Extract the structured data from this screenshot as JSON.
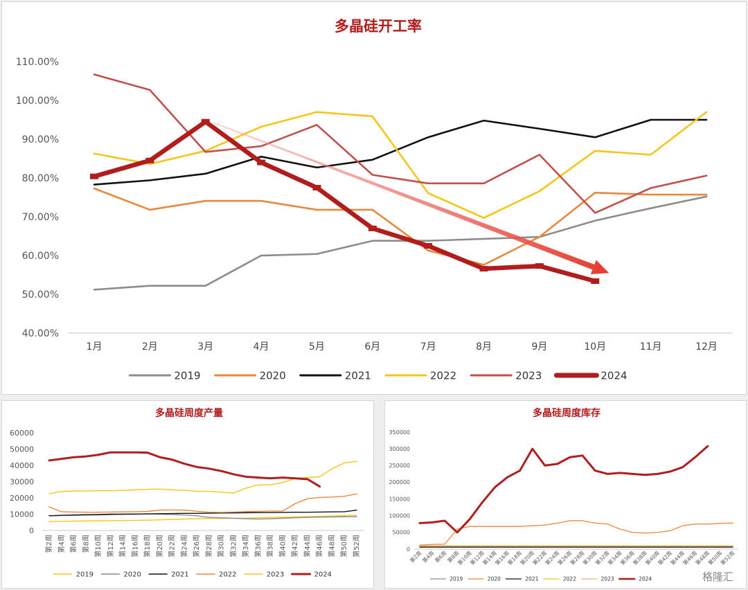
{
  "chart_data": [
    {
      "type": "line",
      "title": "多晶硅开工率",
      "categories": [
        "1月",
        "2月",
        "3月",
        "4月",
        "5月",
        "6月",
        "7月",
        "8月",
        "9月",
        "10月",
        "11月",
        "12月"
      ],
      "ylim": [
        40,
        110
      ],
      "yticks": [
        "40.00%",
        "50.00%",
        "60.00%",
        "70.00%",
        "80.00%",
        "90.00%",
        "100.00%",
        "110.00%"
      ],
      "grid": false,
      "legend": "bottom",
      "series": [
        {
          "name": "2019",
          "color": "#8c8c8c",
          "values": [
            51.2,
            52.2,
            52.2,
            60.0,
            60.4,
            63.8,
            63.8,
            64.3,
            64.8,
            69.0,
            72.2,
            75.2
          ]
        },
        {
          "name": "2020",
          "color": "#e8883a",
          "values": [
            77.3,
            71.8,
            74.1,
            74.1,
            71.8,
            71.8,
            61.3,
            57.6,
            64.8,
            76.2,
            75.7,
            75.7
          ]
        },
        {
          "name": "2021",
          "color": "#111111",
          "values": [
            78.3,
            79.4,
            81.1,
            85.5,
            82.7,
            84.7,
            90.5,
            94.8,
            92.7,
            90.5,
            95.0,
            95.0
          ]
        },
        {
          "name": "2022",
          "color": "#f5c518",
          "values": [
            86.3,
            83.6,
            87.0,
            93.2,
            97.0,
            95.9,
            76.1,
            69.7,
            76.6,
            87.0,
            86.0,
            97.0
          ]
        },
        {
          "name": "2023",
          "color": "#c0504d",
          "values": [
            106.7,
            102.7,
            86.7,
            88.2,
            93.7,
            80.8,
            78.6,
            78.6,
            86.0,
            71.0,
            77.4,
            80.6
          ]
        },
        {
          "name": "2024",
          "color": "#b11d1d",
          "values": [
            80.4,
            84.5,
            94.5,
            84.0,
            77.5,
            67.0,
            62.5,
            56.6,
            57.3,
            53.4,
            null,
            null
          ]
        }
      ]
    },
    {
      "type": "line",
      "title": "多晶硅周度产量",
      "categories": [
        "第2周",
        "第4周",
        "第6周",
        "第8周",
        "第10周",
        "第12周",
        "第14周",
        "第16周",
        "第18周",
        "第20周",
        "第22周",
        "第24周",
        "第26周",
        "第28周",
        "第30周",
        "第32周",
        "第34周",
        "第36周",
        "第38周",
        "第40周",
        "第42周",
        "第44周",
        "第46周",
        "第48周",
        "第50周",
        "第52周"
      ],
      "ylim": [
        0,
        60000
      ],
      "yticks": [
        "0",
        "10000",
        "20000",
        "30000",
        "40000",
        "50000",
        "60000"
      ],
      "legend": "bottom",
      "series": [
        {
          "name": "2019",
          "color": "#f5c518",
          "values": [
            5500,
            5600,
            5700,
            5800,
            5900,
            6000,
            6100,
            6200,
            6300,
            6500,
            6800,
            7000,
            7200,
            7300,
            7400,
            7400,
            7600,
            7800,
            8000,
            8100,
            8300,
            8500,
            8700,
            8900,
            9100,
            9300
          ]
        },
        {
          "name": "2020",
          "color": "#8c8c8c",
          "values": [
            9000,
            9200,
            9300,
            9400,
            9500,
            9700,
            10000,
            10000,
            10200,
            10000,
            9800,
            9500,
            9000,
            8000,
            7800,
            7500,
            7200,
            7000,
            7200,
            7500,
            7800,
            8000,
            8200,
            8300,
            8400,
            8500
          ]
        },
        {
          "name": "2021",
          "color": "#111111",
          "values": [
            9000,
            9300,
            9500,
            9700,
            9800,
            10000,
            10000,
            10100,
            10200,
            10300,
            10400,
            10500,
            10500,
            10600,
            10700,
            10800,
            10900,
            11000,
            11000,
            11100,
            11200,
            11200,
            11300,
            11400,
            11500,
            12500
          ]
        },
        {
          "name": "2022",
          "color": "#e8883a",
          "values": [
            14500,
            11500,
            11300,
            11200,
            11200,
            11300,
            11400,
            11500,
            11700,
            12500,
            12600,
            12500,
            11800,
            11200,
            11100,
            11300,
            11600,
            11700,
            11900,
            12000,
            16500,
            19500,
            20300,
            20500,
            21000,
            22500
          ]
        },
        {
          "name": "2023",
          "color": "#f5c518",
          "values": [
            22500,
            24000,
            24200,
            24300,
            24400,
            24400,
            24600,
            25000,
            25300,
            25400,
            25000,
            24600,
            24000,
            24000,
            23500,
            23000,
            26000,
            28000,
            28000,
            29500,
            32000,
            32500,
            33000,
            38000,
            41500,
            42500
          ]
        },
        {
          "name": "2024",
          "color": "#b11d1d",
          "values": [
            43000,
            44000,
            45000,
            45500,
            46500,
            48000,
            48000,
            48000,
            47800,
            45000,
            43500,
            41000,
            39000,
            38000,
            36500,
            34500,
            33000,
            32500,
            32000,
            32500,
            32000,
            31500,
            27000,
            null,
            null,
            null
          ]
        }
      ]
    },
    {
      "type": "line",
      "title": "多晶硅周度库存",
      "categories": [
        "第2周",
        "第4周",
        "第6周",
        "第8周",
        "第10周",
        "第12周",
        "第14周",
        "第16周",
        "第18周",
        "第20周",
        "第22周",
        "第24周",
        "第26周",
        "第28周",
        "第30周",
        "第32周",
        "第34周",
        "第36周",
        "第38周",
        "第40周",
        "第42周",
        "第44周",
        "第46周",
        "第48周",
        "第50周",
        "第52周"
      ],
      "ylim": [
        0,
        350000
      ],
      "yticks": [
        "0",
        "50000",
        "100000",
        "150000",
        "200000",
        "250000",
        "300000",
        "350000"
      ],
      "legend": "bottom",
      "series": [
        {
          "name": "2019",
          "color": "#8c8c8c",
          "values": [
            8000,
            8000,
            8000,
            8000,
            8000,
            8000,
            8000,
            8000,
            8000,
            8000,
            8000,
            8000,
            8000,
            8000,
            8000,
            8000,
            8000,
            8000,
            8000,
            8000,
            8000,
            8000,
            8000,
            8000,
            8000,
            8000
          ]
        },
        {
          "name": "2020",
          "color": "#e8883a",
          "values": [
            12000,
            14000,
            15000,
            60000,
            68000,
            68000,
            68000,
            68000,
            68000,
            70000,
            72000,
            78000,
            85000,
            85000,
            78000,
            75000,
            60000,
            50000,
            48000,
            50000,
            55000,
            70000,
            75000,
            75000,
            77000,
            78000
          ]
        },
        {
          "name": "2021",
          "color": "#111111",
          "values": [
            6000,
            6000,
            6000,
            6000,
            6000,
            6000,
            6000,
            6000,
            6000,
            6000,
            6000,
            6000,
            6000,
            6000,
            6000,
            6000,
            6000,
            6000,
            6000,
            6000,
            6000,
            6000,
            6000,
            6000,
            6000,
            6000
          ]
        },
        {
          "name": "2022",
          "color": "#f5c518",
          "values": [
            10000,
            10000,
            10000,
            10000,
            10000,
            10000,
            10000,
            10000,
            10000,
            10000,
            10000,
            10000,
            10000,
            10000,
            10000,
            10000,
            10000,
            10000,
            10000,
            10000,
            10000,
            10000,
            10000,
            10000,
            10000,
            10000
          ]
        },
        {
          "name": "2023",
          "color": "#e8b07a",
          "values": [
            9000,
            9000,
            9000,
            9000,
            9000,
            9000,
            9000,
            9000,
            9000,
            9000,
            9000,
            9000,
            9000,
            9000,
            9000,
            9000,
            9000,
            9000,
            9000,
            9000,
            9000,
            9000,
            9000,
            9000,
            9000,
            9000
          ]
        },
        {
          "name": "2024",
          "color": "#b11d1d",
          "values": [
            78000,
            80000,
            85000,
            50000,
            90000,
            140000,
            185000,
            215000,
            235000,
            300000,
            250000,
            255000,
            275000,
            280000,
            235000,
            225000,
            228000,
            225000,
            222000,
            225000,
            232000,
            245000,
            275000,
            308000,
            null,
            null
          ]
        }
      ]
    }
  ],
  "watermark": "格隆汇"
}
